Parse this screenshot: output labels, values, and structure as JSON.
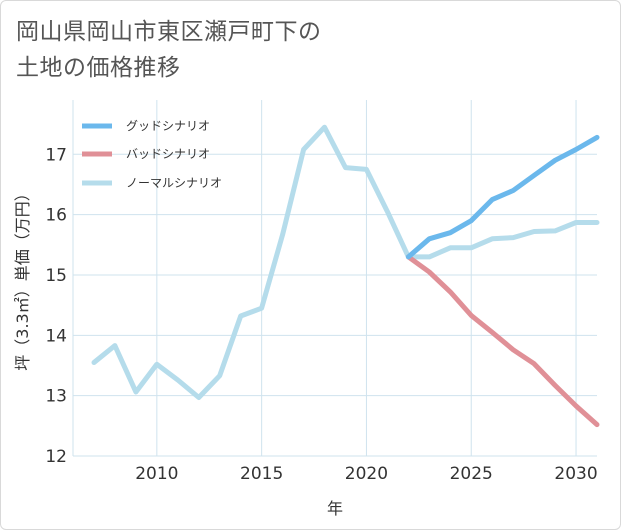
{
  "title_lines": [
    "岡山県岡山市東区瀬戸町下の",
    "土地の価格推移"
  ],
  "chart_data": {
    "type": "line",
    "title": "岡山県岡山市東区瀬戸町下の土地の価格推移",
    "xlabel": "年",
    "ylabel": "坪（3.3㎡）単価（万円）",
    "xlim": [
      2006,
      2031
    ],
    "ylim": [
      12,
      17.9
    ],
    "xticks": [
      2010,
      2015,
      2020,
      2025,
      2030
    ],
    "yticks": [
      12,
      13,
      14,
      15,
      16,
      17
    ],
    "grid": true,
    "legend_position": "top-left",
    "series": [
      {
        "name": "グッドシナリオ",
        "color": "#6bb8ec",
        "x": [
          2022,
          2023,
          2024,
          2025,
          2026,
          2027,
          2028,
          2029,
          2030,
          2031
        ],
        "y": [
          15.3,
          15.6,
          15.7,
          15.9,
          16.25,
          16.4,
          16.65,
          16.9,
          17.08,
          17.28
        ]
      },
      {
        "name": "バッドシナリオ",
        "color": "#e09097",
        "x": [
          2022,
          2023,
          2024,
          2025,
          2026,
          2027,
          2028,
          2029,
          2030,
          2031
        ],
        "y": [
          15.3,
          15.05,
          14.72,
          14.33,
          14.05,
          13.76,
          13.53,
          13.17,
          12.83,
          12.52
        ]
      },
      {
        "name": "ノーマルシナリオ",
        "color": "#b5dceb",
        "x": [
          2007,
          2008,
          2009,
          2010,
          2011,
          2012,
          2013,
          2014,
          2015,
          2016,
          2017,
          2018,
          2019,
          2020,
          2021,
          2022,
          2023,
          2024,
          2025,
          2026,
          2027,
          2028,
          2029,
          2030,
          2031
        ],
        "y": [
          13.55,
          13.83,
          13.06,
          13.52,
          13.26,
          12.97,
          13.33,
          14.32,
          14.45,
          15.67,
          17.08,
          17.45,
          16.78,
          16.75,
          16.05,
          15.3,
          15.3,
          15.45,
          15.45,
          15.6,
          15.62,
          15.72,
          15.73,
          15.87,
          15.87
        ]
      }
    ]
  }
}
